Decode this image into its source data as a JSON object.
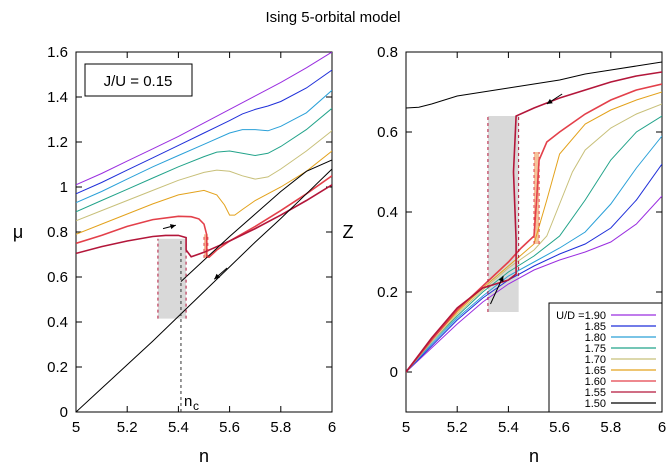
{
  "title": "Ising 5-orbital model",
  "colors": {
    "1.90": "#9a2ee0",
    "1.85": "#1f2fd9",
    "1.80": "#2aa0d8",
    "1.75": "#22a38a",
    "1.70": "#c8c07a",
    "1.65": "#e3a21c",
    "1.60": "#e3404a",
    "1.55": "#b3163a",
    "1.50": "#000000",
    "shade": "#d9d9d9",
    "shade_orange": "#f5c29a"
  },
  "chart_data": [
    {
      "type": "line",
      "xlabel": "n",
      "ylabel": "μ",
      "xlim": [
        5,
        6
      ],
      "ylim": [
        0,
        1.6
      ],
      "xticks": [
        "5",
        "5.2",
        "5.4",
        "5.6",
        "5.8",
        "6"
      ],
      "yticks": [
        "0",
        "0.2",
        "0.4",
        "0.6",
        "0.8",
        "1",
        "1.2",
        "1.4",
        "1.6"
      ],
      "annotation_box": "J/U = 0.15",
      "marker_label_main": "n",
      "marker_label_sub": "c",
      "marker_x": 5.41,
      "series": [
        {
          "name": "1.90",
          "points": [
            [
              5,
              1.01
            ],
            [
              5.1,
              1.06
            ],
            [
              5.2,
              1.115
            ],
            [
              5.3,
              1.17
            ],
            [
              5.4,
              1.225
            ],
            [
              5.5,
              1.285
            ],
            [
              5.6,
              1.345
            ],
            [
              5.7,
              1.405
            ],
            [
              5.8,
              1.465
            ],
            [
              5.9,
              1.53
            ],
            [
              6,
              1.6
            ]
          ]
        },
        {
          "name": "1.85",
          "points": [
            [
              5,
              0.97
            ],
            [
              5.1,
              1.02
            ],
            [
              5.2,
              1.075
            ],
            [
              5.3,
              1.13
            ],
            [
              5.4,
              1.185
            ],
            [
              5.5,
              1.24
            ],
            [
              5.6,
              1.295
            ],
            [
              5.65,
              1.325
            ],
            [
              5.7,
              1.345
            ],
            [
              5.75,
              1.36
            ],
            [
              5.8,
              1.38
            ],
            [
              5.9,
              1.44
            ],
            [
              6,
              1.52
            ]
          ]
        },
        {
          "name": "1.80",
          "points": [
            [
              5,
              0.93
            ],
            [
              5.1,
              0.98
            ],
            [
              5.2,
              1.035
            ],
            [
              5.3,
              1.09
            ],
            [
              5.4,
              1.14
            ],
            [
              5.5,
              1.19
            ],
            [
              5.6,
              1.24
            ],
            [
              5.65,
              1.255
            ],
            [
              5.7,
              1.255
            ],
            [
              5.75,
              1.25
            ],
            [
              5.8,
              1.27
            ],
            [
              5.9,
              1.33
            ],
            [
              6,
              1.43
            ]
          ]
        },
        {
          "name": "1.75",
          "points": [
            [
              5,
              0.89
            ],
            [
              5.1,
              0.94
            ],
            [
              5.2,
              0.99
            ],
            [
              5.3,
              1.04
            ],
            [
              5.4,
              1.09
            ],
            [
              5.5,
              1.135
            ],
            [
              5.55,
              1.155
            ],
            [
              5.6,
              1.16
            ],
            [
              5.65,
              1.15
            ],
            [
              5.7,
              1.14
            ],
            [
              5.75,
              1.15
            ],
            [
              5.8,
              1.18
            ],
            [
              5.9,
              1.255
            ],
            [
              6,
              1.35
            ]
          ]
        },
        {
          "name": "1.70",
          "points": [
            [
              5,
              0.85
            ],
            [
              5.1,
              0.895
            ],
            [
              5.2,
              0.94
            ],
            [
              5.3,
              0.985
            ],
            [
              5.4,
              1.03
            ],
            [
              5.5,
              1.065
            ],
            [
              5.55,
              1.075
            ],
            [
              5.6,
              1.07
            ],
            [
              5.65,
              1.05
            ],
            [
              5.7,
              1.035
            ],
            [
              5.75,
              1.045
            ],
            [
              5.8,
              1.08
            ],
            [
              5.9,
              1.16
            ],
            [
              6,
              1.25
            ]
          ]
        },
        {
          "name": "1.65",
          "points": [
            [
              5,
              0.79
            ],
            [
              5.1,
              0.835
            ],
            [
              5.2,
              0.88
            ],
            [
              5.3,
              0.925
            ],
            [
              5.4,
              0.965
            ],
            [
              5.5,
              0.985
            ],
            [
              5.55,
              0.965
            ],
            [
              5.58,
              0.92
            ],
            [
              5.6,
              0.875
            ],
            [
              5.62,
              0.875
            ],
            [
              5.65,
              0.9
            ],
            [
              5.7,
              0.94
            ],
            [
              5.8,
              1.0
            ],
            [
              5.9,
              1.07
            ],
            [
              6,
              1.16
            ]
          ]
        },
        {
          "name": "1.60",
          "points": [
            [
              5,
              0.75
            ],
            [
              5.1,
              0.785
            ],
            [
              5.2,
              0.825
            ],
            [
              5.3,
              0.855
            ],
            [
              5.4,
              0.87
            ],
            [
              5.45,
              0.868
            ],
            [
              5.48,
              0.858
            ],
            [
              5.5,
              0.835
            ],
            [
              5.51,
              0.79
            ],
            [
              5.51,
              0.72
            ],
            [
              5.51,
              0.69
            ],
            [
              5.52,
              0.688
            ],
            [
              5.55,
              0.72
            ],
            [
              5.6,
              0.76
            ],
            [
              5.7,
              0.825
            ],
            [
              5.8,
              0.895
            ],
            [
              5.9,
              0.97
            ],
            [
              6,
              1.05
            ]
          ]
        },
        {
          "name": "1.55",
          "points": [
            [
              5,
              0.705
            ],
            [
              5.1,
              0.735
            ],
            [
              5.2,
              0.76
            ],
            [
              5.3,
              0.78
            ],
            [
              5.35,
              0.785
            ],
            [
              5.4,
              0.785
            ],
            [
              5.43,
              0.775
            ],
            [
              5.43,
              0.72
            ],
            [
              5.45,
              0.69
            ],
            [
              5.5,
              0.71
            ],
            [
              5.6,
              0.76
            ],
            [
              5.7,
              0.815
            ],
            [
              5.8,
              0.875
            ],
            [
              5.9,
              0.94
            ],
            [
              6,
              1.01
            ]
          ]
        },
        {
          "name": "1.50",
          "points": [
            [
              5,
              0
            ],
            [
              5.1,
              0.105
            ],
            [
              5.2,
              0.21
            ],
            [
              5.3,
              0.315
            ],
            [
              5.4,
              0.425
            ],
            [
              5.5,
              0.535
            ],
            [
              5.6,
              0.645
            ],
            [
              5.7,
              0.755
            ],
            [
              5.8,
              0.86
            ],
            [
              5.9,
              0.97
            ],
            [
              6,
              1.08
            ]
          ]
        },
        {
          "name": "1.50b",
          "points": [
            [
              5.41,
              0.58
            ],
            [
              5.5,
              0.675
            ],
            [
              5.6,
              0.78
            ],
            [
              5.7,
              0.88
            ],
            [
              5.8,
              0.98
            ],
            [
              5.9,
              1.07
            ],
            [
              6,
              1.12
            ]
          ]
        }
      ]
    },
    {
      "type": "line",
      "xlabel": "n",
      "ylabel": "Z",
      "xlim": [
        5,
        6
      ],
      "ylim": [
        -0.1,
        0.8
      ],
      "xticks": [
        "5",
        "5.2",
        "5.4",
        "5.6",
        "5.8",
        "6"
      ],
      "yticks": [
        "0",
        "0.2",
        "0.4",
        "0.6",
        "0.8"
      ],
      "legend_title": "U/D =",
      "legend_position": "bottom-right",
      "series": [
        {
          "name": "1.90",
          "points": [
            [
              5,
              0
            ],
            [
              5.1,
              0.06
            ],
            [
              5.2,
              0.12
            ],
            [
              5.3,
              0.175
            ],
            [
              5.4,
              0.22
            ],
            [
              5.5,
              0.255
            ],
            [
              5.6,
              0.28
            ],
            [
              5.7,
              0.3
            ],
            [
              5.8,
              0.325
            ],
            [
              5.9,
              0.37
            ],
            [
              6,
              0.44
            ]
          ]
        },
        {
          "name": "1.85",
          "points": [
            [
              5,
              0
            ],
            [
              5.1,
              0.065
            ],
            [
              5.2,
              0.13
            ],
            [
              5.3,
              0.185
            ],
            [
              5.4,
              0.23
            ],
            [
              5.5,
              0.265
            ],
            [
              5.6,
              0.295
            ],
            [
              5.7,
              0.32
            ],
            [
              5.8,
              0.36
            ],
            [
              5.9,
              0.43
            ],
            [
              6,
              0.52
            ]
          ]
        },
        {
          "name": "1.80",
          "points": [
            [
              5,
              0
            ],
            [
              5.1,
              0.07
            ],
            [
              5.2,
              0.135
            ],
            [
              5.3,
              0.19
            ],
            [
              5.4,
              0.24
            ],
            [
              5.5,
              0.275
            ],
            [
              5.6,
              0.31
            ],
            [
              5.7,
              0.35
            ],
            [
              5.8,
              0.42
            ],
            [
              5.9,
              0.51
            ],
            [
              6,
              0.59
            ]
          ]
        },
        {
          "name": "1.75",
          "points": [
            [
              5,
              0
            ],
            [
              5.1,
              0.075
            ],
            [
              5.2,
              0.14
            ],
            [
              5.3,
              0.2
            ],
            [
              5.4,
              0.25
            ],
            [
              5.5,
              0.29
            ],
            [
              5.6,
              0.34
            ],
            [
              5.7,
              0.43
            ],
            [
              5.8,
              0.53
            ],
            [
              5.9,
              0.6
            ],
            [
              6,
              0.64
            ]
          ]
        },
        {
          "name": "1.70",
          "points": [
            [
              5,
              0
            ],
            [
              5.1,
              0.075
            ],
            [
              5.2,
              0.145
            ],
            [
              5.3,
              0.205
            ],
            [
              5.4,
              0.26
            ],
            [
              5.5,
              0.305
            ],
            [
              5.55,
              0.34
            ],
            [
              5.6,
              0.42
            ],
            [
              5.65,
              0.5
            ],
            [
              5.7,
              0.555
            ],
            [
              5.8,
              0.61
            ],
            [
              5.9,
              0.645
            ],
            [
              6,
              0.67
            ]
          ]
        },
        {
          "name": "1.65",
          "points": [
            [
              5,
              0
            ],
            [
              5.1,
              0.08
            ],
            [
              5.2,
              0.15
            ],
            [
              5.3,
              0.21
            ],
            [
              5.4,
              0.265
            ],
            [
              5.5,
              0.32
            ],
            [
              5.55,
              0.43
            ],
            [
              5.6,
              0.545
            ],
            [
              5.7,
              0.62
            ],
            [
              5.8,
              0.655
            ],
            [
              5.9,
              0.68
            ],
            [
              6,
              0.7
            ]
          ]
        },
        {
          "name": "1.60",
          "points": [
            [
              5,
              0
            ],
            [
              5.1,
              0.08
            ],
            [
              5.2,
              0.155
            ],
            [
              5.3,
              0.215
            ],
            [
              5.4,
              0.275
            ],
            [
              5.45,
              0.31
            ],
            [
              5.5,
              0.34
            ],
            [
              5.51,
              0.43
            ],
            [
              5.52,
              0.53
            ],
            [
              5.55,
              0.575
            ],
            [
              5.6,
              0.6
            ],
            [
              5.7,
              0.645
            ],
            [
              5.8,
              0.68
            ],
            [
              5.9,
              0.705
            ],
            [
              6,
              0.72
            ]
          ]
        },
        {
          "name": "1.55",
          "points": [
            [
              5,
              0
            ],
            [
              5.1,
              0.085
            ],
            [
              5.2,
              0.16
            ],
            [
              5.3,
              0.21
            ],
            [
              5.35,
              0.22
            ],
            [
              5.4,
              0.23
            ],
            [
              5.43,
              0.245
            ],
            [
              5.43,
              0.33
            ],
            [
              5.42,
              0.5
            ],
            [
              5.43,
              0.64
            ],
            [
              5.5,
              0.66
            ],
            [
              5.6,
              0.685
            ],
            [
              5.7,
              0.705
            ],
            [
              5.8,
              0.725
            ],
            [
              5.9,
              0.74
            ],
            [
              6,
              0.75
            ]
          ]
        },
        {
          "name": "1.50",
          "points": [
            [
              5,
              0.66
            ],
            [
              5.05,
              0.662
            ],
            [
              5.1,
              0.67
            ],
            [
              5.2,
              0.69
            ],
            [
              5.3,
              0.7
            ],
            [
              5.4,
              0.71
            ],
            [
              5.5,
              0.72
            ],
            [
              5.6,
              0.73
            ],
            [
              5.7,
              0.745
            ],
            [
              5.8,
              0.755
            ],
            [
              5.9,
              0.765
            ],
            [
              6,
              0.775
            ]
          ]
        }
      ]
    }
  ]
}
